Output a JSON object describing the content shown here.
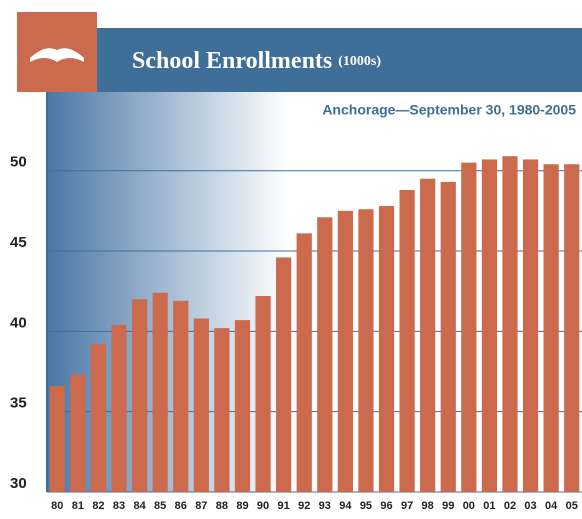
{
  "chart_data": {
    "type": "bar",
    "title": "School Enrollments",
    "unit": "(1000s)",
    "subtitle": "Anchorage—September 30, 1980-2005",
    "categories": [
      "80",
      "81",
      "82",
      "83",
      "84",
      "85",
      "86",
      "87",
      "88",
      "89",
      "90",
      "91",
      "92",
      "93",
      "94",
      "95",
      "96",
      "97",
      "98",
      "99",
      "00",
      "01",
      "02",
      "03",
      "04",
      "05"
    ],
    "values": [
      36.6,
      37.3,
      39.2,
      40.4,
      42.0,
      42.4,
      41.9,
      40.8,
      40.2,
      40.7,
      42.2,
      44.6,
      46.1,
      47.1,
      47.5,
      47.6,
      47.8,
      48.8,
      49.5,
      49.3,
      50.5,
      50.7,
      50.9,
      50.7,
      50.4,
      50.4
    ],
    "color": "#cc6a4e",
    "ylim": [
      30,
      54.4
    ],
    "yticks": [
      30,
      35,
      40,
      45,
      50
    ],
    "grid": true,
    "grid_color": "#3e6f9c"
  }
}
